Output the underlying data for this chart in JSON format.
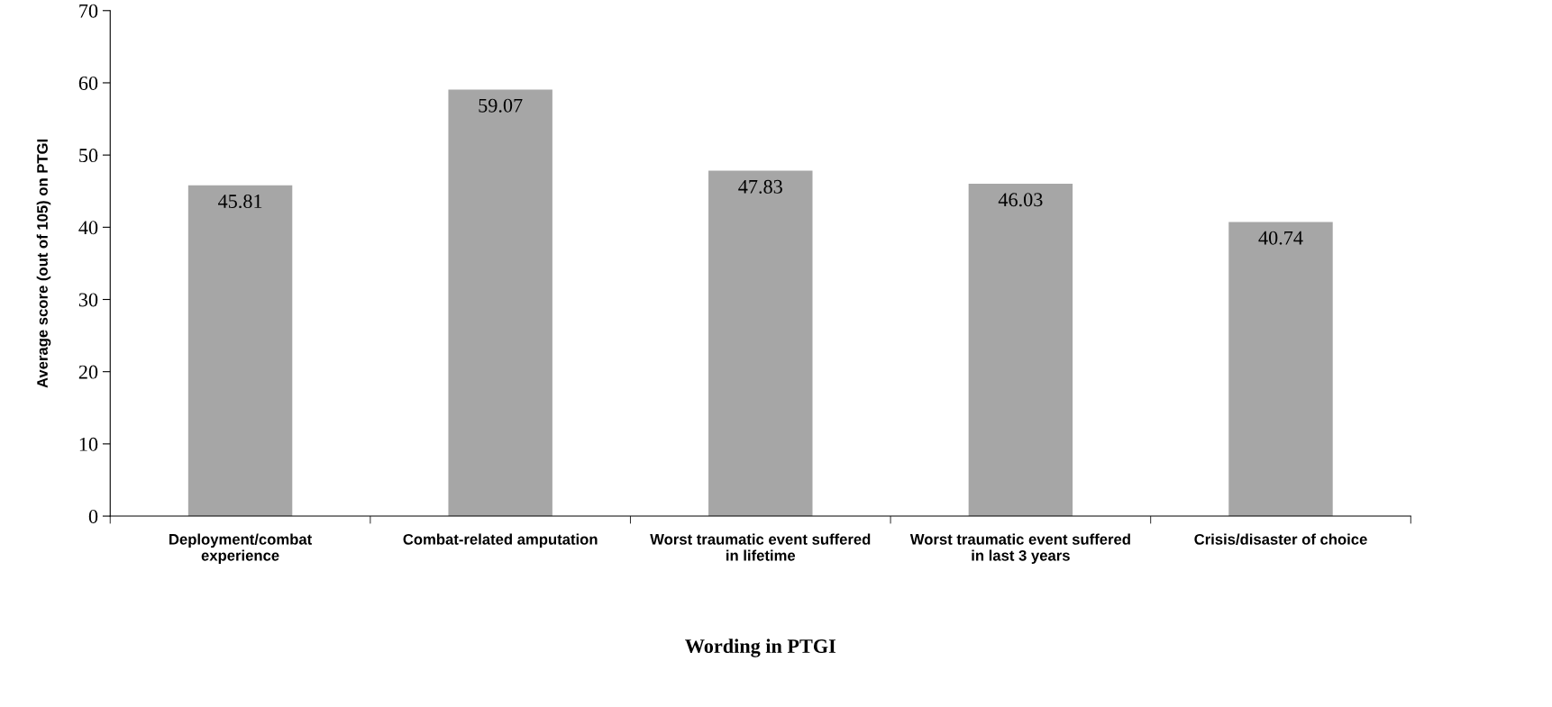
{
  "chart_data": {
    "type": "bar",
    "xlabel": "Wording in PTGI",
    "ylabel": "Average score (out of 105) on PTGI",
    "categories": [
      "Deployment/combat\nexperience",
      "Combat-related amputation",
      "Worst traumatic event suffered\nin lifetime",
      "Worst traumatic event suffered\nin last 3 years",
      "Crisis/disaster of choice"
    ],
    "values": [
      45.81,
      59.07,
      47.83,
      46.03,
      40.74
    ],
    "color": "#a6a6a6",
    "ylim": [
      0,
      70
    ],
    "yticks": [
      0,
      10,
      20,
      30,
      40,
      50,
      60,
      70
    ],
    "grid": false,
    "data_labels": true
  }
}
